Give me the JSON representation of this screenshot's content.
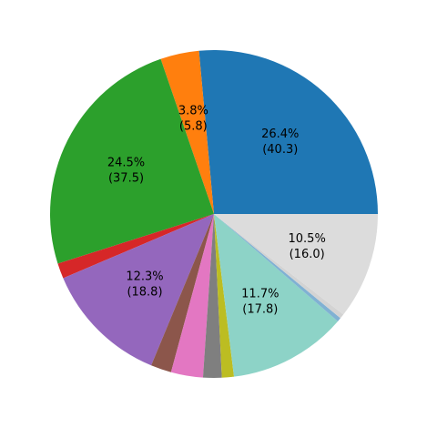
{
  "chart_data": {
    "type": "pie",
    "start_angle_deg": 0,
    "direction": "counterclockwise",
    "slices": [
      {
        "value": 40.3,
        "color": "#1f77b4",
        "label": [
          "26.4%",
          "(40.3)"
        ]
      },
      {
        "value": 5.8,
        "color": "#ff7f0e",
        "label": [
          "3.8%",
          "(5.8)"
        ]
      },
      {
        "value": 37.5,
        "color": "#2ca02c",
        "label": [
          "24.5%",
          "(37.5)"
        ]
      },
      {
        "value": 2.3,
        "color": "#d62728",
        "label": null
      },
      {
        "value": 18.8,
        "color": "#9467bd",
        "label": [
          "12.3%",
          "(18.8)"
        ]
      },
      {
        "value": 3.1,
        "color": "#8c564b",
        "label": null
      },
      {
        "value": 4.8,
        "color": "#e377c2",
        "label": null
      },
      {
        "value": 2.8,
        "color": "#7f7f7f",
        "label": null
      },
      {
        "value": 1.8,
        "color": "#bcbd22",
        "label": null
      },
      {
        "value": 17.8,
        "color": "#8dd3c7",
        "label": [
          "11.7%",
          "(17.8)"
        ]
      },
      {
        "value": 0.6,
        "color": "#80b1d3",
        "label": null
      },
      {
        "value": 0.7,
        "color": "#d3d3d3",
        "label": null
      },
      {
        "value": 16.0,
        "color": "#dcdcdc",
        "label": [
          "10.5%",
          "(16.0)"
        ]
      }
    ]
  }
}
